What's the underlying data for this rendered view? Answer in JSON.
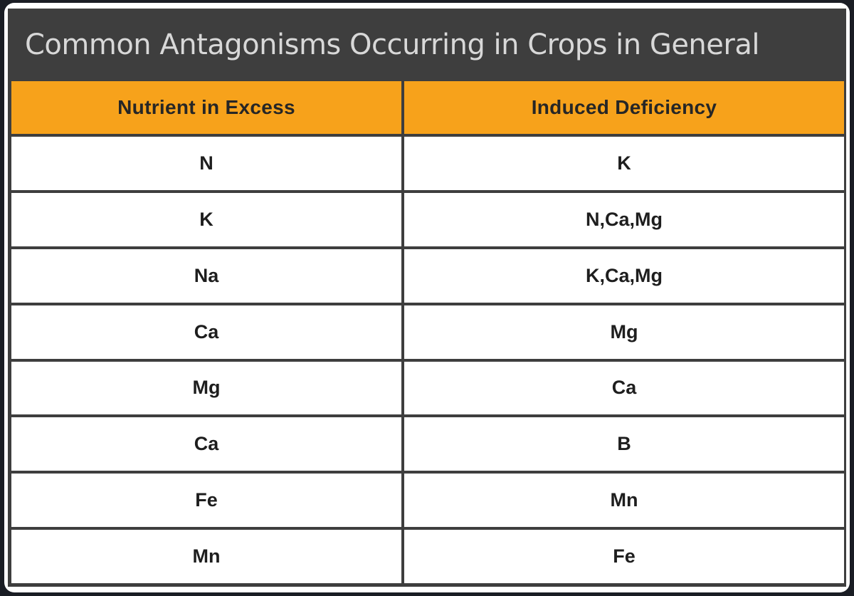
{
  "title": "Common Antagonisms Occurring in Crops in General",
  "table": {
    "headers": [
      "Nutrient in Excess",
      "Induced Deficiency"
    ],
    "rows": [
      [
        "N",
        "K"
      ],
      [
        "K",
        "N,Ca,Mg"
      ],
      [
        "Na",
        "K,Ca,Mg"
      ],
      [
        "Ca",
        "Mg"
      ],
      [
        "Mg",
        "Ca"
      ],
      [
        "Ca",
        "B"
      ],
      [
        "Fe",
        "Mn"
      ],
      [
        "Mn",
        "Fe"
      ]
    ]
  },
  "colors": {
    "title_bar": "#3e3e3e",
    "title_text": "#d8d8d8",
    "header_bg": "#f7a21b",
    "cell_bg": "#ffffff",
    "grid_lines": "#3e3e3e"
  }
}
